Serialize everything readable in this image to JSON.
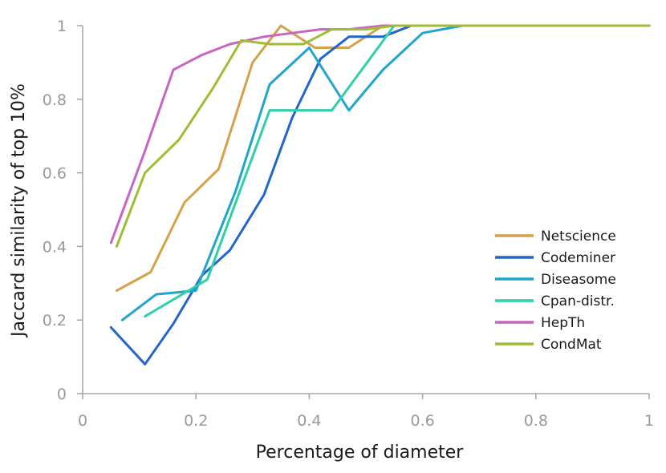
{
  "chart_data": {
    "type": "line",
    "title": "",
    "xlabel": "Percentage of diameter",
    "ylabel": "Jaccard similarity of top 10%",
    "xlim": [
      0,
      1
    ],
    "ylim": [
      0,
      1
    ],
    "x_ticks": [
      0,
      0.2,
      0.4,
      0.6,
      0.8,
      1
    ],
    "x_tick_labels": [
      "0",
      "0.2",
      "0.4",
      "0.6",
      "0.8",
      "1"
    ],
    "y_ticks": [
      0,
      0.2,
      0.4,
      0.6,
      0.8,
      1
    ],
    "y_tick_labels": [
      "0",
      "0.2",
      "0.4",
      "0.6",
      "0.8",
      "1"
    ],
    "grid": false,
    "legend_position": "right-center",
    "series": [
      {
        "name": "Netscience",
        "color": "#d4a24c",
        "x": [
          0.06,
          0.12,
          0.18,
          0.24,
          0.3,
          0.35,
          0.41,
          0.47,
          0.53,
          0.59,
          1.0
        ],
        "y": [
          0.28,
          0.33,
          0.52,
          0.61,
          0.9,
          1.0,
          0.94,
          0.94,
          1.0,
          1.0,
          1.0
        ]
      },
      {
        "name": "Codeminer",
        "color": "#2166c8",
        "x": [
          0.05,
          0.11,
          0.16,
          0.21,
          0.26,
          0.32,
          0.37,
          0.42,
          0.47,
          0.53,
          0.58,
          1.0
        ],
        "y": [
          0.18,
          0.08,
          0.19,
          0.32,
          0.39,
          0.54,
          0.75,
          0.91,
          0.97,
          0.97,
          1.0,
          1.0
        ]
      },
      {
        "name": "Diseasome",
        "color": "#21a5cc",
        "x": [
          0.07,
          0.13,
          0.2,
          0.27,
          0.33,
          0.4,
          0.47,
          0.53,
          0.6,
          0.67,
          1.0
        ],
        "y": [
          0.2,
          0.27,
          0.28,
          0.55,
          0.84,
          0.94,
          0.77,
          0.88,
          0.98,
          1.0,
          1.0
        ]
      },
      {
        "name": "Cpan-distr.",
        "color": "#2fcfa9",
        "x": [
          0.11,
          0.22,
          0.33,
          0.44,
          0.55,
          1.0
        ],
        "y": [
          0.21,
          0.31,
          0.77,
          0.77,
          1.0,
          1.0
        ]
      },
      {
        "name": "HepTh",
        "color": "#c865c2",
        "x": [
          0.05,
          0.11,
          0.16,
          0.21,
          0.26,
          0.32,
          0.37,
          0.42,
          0.47,
          0.53,
          0.58,
          1.0
        ],
        "y": [
          0.41,
          0.66,
          0.88,
          0.92,
          0.95,
          0.97,
          0.98,
          0.99,
          0.99,
          1.0,
          1.0,
          1.0
        ]
      },
      {
        "name": "CondMat",
        "color": "#9ebd33",
        "x": [
          0.06,
          0.11,
          0.17,
          0.23,
          0.28,
          0.33,
          0.39,
          0.44,
          0.5,
          0.55,
          1.0
        ],
        "y": [
          0.4,
          0.6,
          0.69,
          0.83,
          0.96,
          0.95,
          0.95,
          0.99,
          0.99,
          1.0,
          1.0
        ]
      }
    ]
  }
}
